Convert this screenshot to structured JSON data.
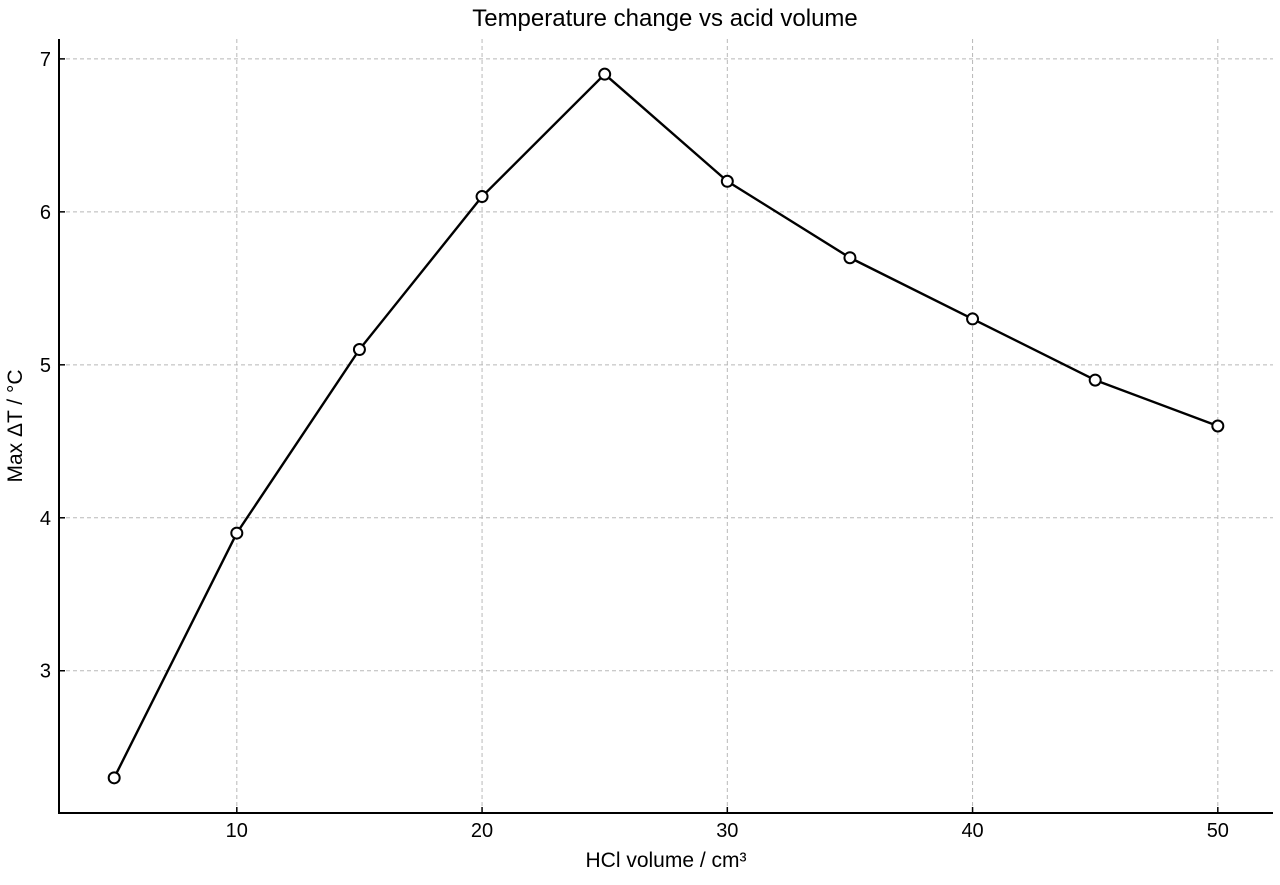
{
  "chart_data": {
    "type": "line",
    "title": "Temperature change vs acid volume",
    "xlabel": "HCl volume / cm³",
    "ylabel": "Max ΔT / °C",
    "x": [
      5,
      10,
      15,
      20,
      25,
      30,
      35,
      40,
      45,
      50
    ],
    "series": [
      {
        "values": [
          2.3,
          3.9,
          5.1,
          6.1,
          6.9,
          6.2,
          5.7,
          5.3,
          4.9,
          4.6
        ],
        "color": "#000000",
        "marker": "open-circle"
      }
    ],
    "xlim": [
      2.75,
      52.25
    ],
    "ylim": [
      2.07,
      7.13
    ],
    "xticks": [
      10,
      20,
      30,
      40,
      50
    ],
    "yticks": [
      3,
      4,
      5,
      6,
      7
    ],
    "grid": true,
    "legend": "none"
  }
}
